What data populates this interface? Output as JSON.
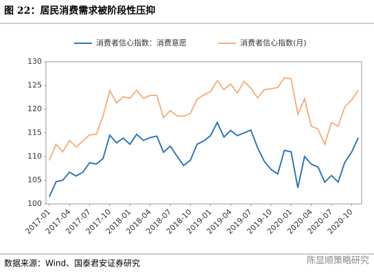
{
  "chart_data": {
    "type": "line",
    "title": "图 22：居民消费需求被阶段性压抑",
    "source": "数据来源：Wind、国泰君安证券研究",
    "watermark": "陈显顺策略研究",
    "categories": [
      "2017-01",
      null,
      null,
      "2017-04",
      null,
      null,
      "2017-07",
      null,
      null,
      "2017-10",
      null,
      null,
      "2018-01",
      null,
      null,
      "2018-04",
      null,
      null,
      "2018-07",
      null,
      null,
      "2018-10",
      null,
      null,
      "2019-01",
      null,
      null,
      "2019-04",
      null,
      null,
      "2019-07",
      null,
      null,
      "2019-10",
      null,
      null,
      "2020-01",
      null,
      null,
      "2020-04",
      null,
      null,
      "2020-07",
      null,
      null,
      "2020-10",
      null
    ],
    "series": [
      {
        "name": "消费者信心指数：消费意愿",
        "color": "#2e75b6",
        "values": [
          101.5,
          104.7,
          105.0,
          106.7,
          105.9,
          106.7,
          108.7,
          108.4,
          109.6,
          114.5,
          112.9,
          113.9,
          112.6,
          114.7,
          113.4,
          114.0,
          114.3,
          110.9,
          112.2,
          110.1,
          108.1,
          109.2,
          112.6,
          113.3,
          114.4,
          117.2,
          114.1,
          115.5,
          114.4,
          115.0,
          115.6,
          111.9,
          109.0,
          107.3,
          106.3,
          111.3,
          111.0,
          103.4,
          110.0,
          108.4,
          107.8,
          104.6,
          106.0,
          104.6,
          108.8,
          110.9,
          114.0
        ]
      },
      {
        "name": "消费者信心指数(月)",
        "color": "#f4b183",
        "values": [
          109.2,
          112.6,
          111.0,
          113.4,
          112.0,
          113.3,
          114.6,
          114.7,
          118.6,
          123.9,
          121.3,
          122.6,
          122.3,
          124.0,
          122.3,
          122.9,
          122.9,
          118.2,
          119.7,
          118.6,
          118.5,
          119.1,
          122.1,
          123.0,
          123.7,
          126.0,
          124.1,
          125.3,
          123.4,
          125.9,
          124.4,
          122.4,
          124.1,
          124.3,
          124.6,
          126.6,
          126.4,
          118.9,
          122.2,
          116.4,
          115.8,
          112.6,
          117.2,
          116.4,
          120.5,
          121.9,
          124.0
        ]
      }
    ],
    "ylim": [
      100,
      130
    ],
    "yticks": [
      100,
      105,
      110,
      115,
      120,
      125,
      130
    ],
    "grid": false
  }
}
